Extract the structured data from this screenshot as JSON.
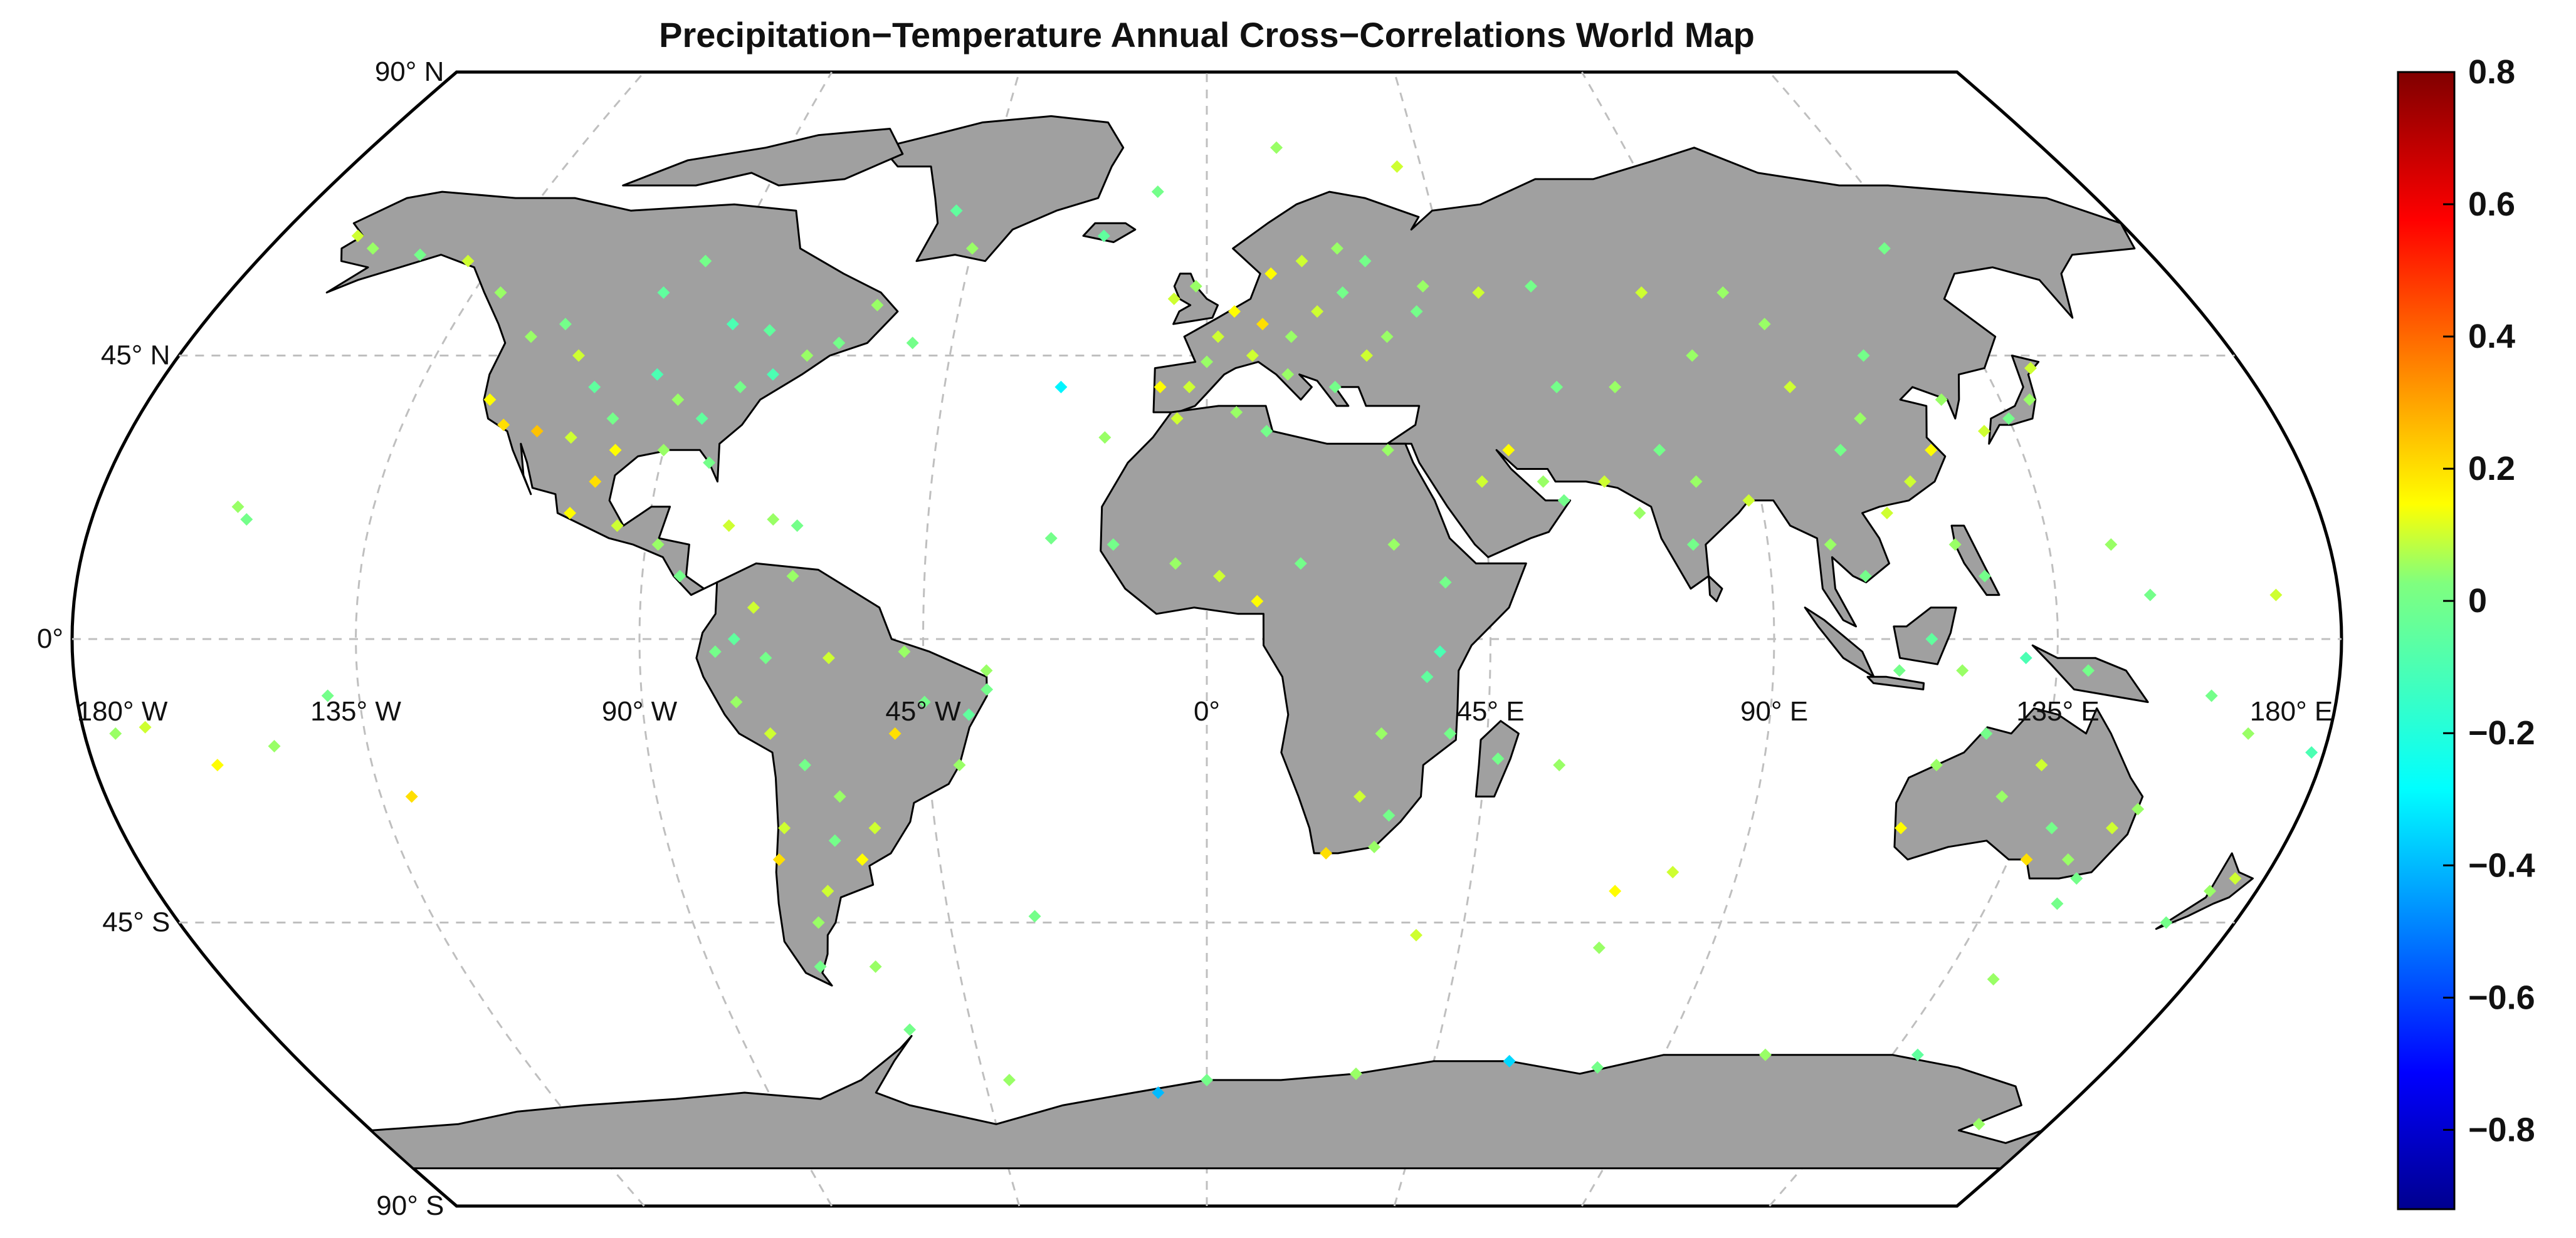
{
  "title": "Precipitation−Temperature Annual Cross−Correlations World Map",
  "graticule": {
    "lat_labels": [
      {
        "lat": 90,
        "text": "90° N"
      },
      {
        "lat": 45,
        "text": "45° N"
      },
      {
        "lat": 0,
        "text": "0°"
      },
      {
        "lat": -45,
        "text": "45° S"
      },
      {
        "lat": -90,
        "text": "90° S"
      }
    ],
    "lon_labels": [
      {
        "lon": -180,
        "text": "180° W"
      },
      {
        "lon": -135,
        "text": "135° W"
      },
      {
        "lon": -90,
        "text": "90° W"
      },
      {
        "lon": -45,
        "text": "45° W"
      },
      {
        "lon": 0,
        "text": "0°"
      },
      {
        "lon": 45,
        "text": "45° E"
      },
      {
        "lon": 90,
        "text": "90° E"
      },
      {
        "lon": 135,
        "text": "135° E"
      },
      {
        "lon": 180,
        "text": "180° E"
      }
    ]
  },
  "colorbar": {
    "min": -0.92,
    "max": 0.8,
    "ticks": [
      {
        "value": 0.8,
        "text": "0.8"
      },
      {
        "value": 0.6,
        "text": "0.6"
      },
      {
        "value": 0.4,
        "text": "0.4"
      },
      {
        "value": 0.2,
        "text": "0.2"
      },
      {
        "value": 0,
        "text": "0"
      },
      {
        "value": -0.2,
        "text": "−0.2"
      },
      {
        "value": -0.4,
        "text": "−0.4"
      },
      {
        "value": -0.6,
        "text": "−0.6"
      },
      {
        "value": -0.8,
        "text": "−0.8"
      }
    ],
    "colormap": "jet"
  },
  "map": {
    "projection": "robinson-like",
    "ocean_color": "#ffffff",
    "land_color": "#a0a0a0",
    "land_stroke": "#000000",
    "graticule_color": "#bfbfbf"
  },
  "stations": [
    [
      -120,
      48,
      0.05
    ],
    [
      -115,
      50,
      0.0
    ],
    [
      -110,
      45,
      0.1
    ],
    [
      -105,
      40,
      -0.05
    ],
    [
      -100,
      35,
      0.0
    ],
    [
      -95,
      42,
      -0.1
    ],
    [
      -90,
      38,
      0.05
    ],
    [
      -85,
      35,
      -0.05
    ],
    [
      -80,
      40,
      0.0
    ],
    [
      -75,
      42,
      -0.1
    ],
    [
      -70,
      45,
      0.05
    ],
    [
      -122,
      38,
      0.15
    ],
    [
      -118,
      34,
      0.2
    ],
    [
      -112,
      33,
      0.25
    ],
    [
      -106,
      32,
      0.1
    ],
    [
      -98,
      30,
      0.15
    ],
    [
      -90,
      30,
      0.05
    ],
    [
      -82,
      28,
      0.0
    ],
    [
      -100,
      25,
      0.2
    ],
    [
      -103,
      20,
      0.15
    ],
    [
      -95,
      18,
      0.1
    ],
    [
      -88,
      15,
      0.05
    ],
    [
      -84,
      10,
      0.0
    ],
    [
      -77,
      18,
      0.1
    ],
    [
      -70,
      19,
      0.05
    ],
    [
      -66,
      18,
      0.0
    ],
    [
      -130,
      55,
      0.05
    ],
    [
      -140,
      60,
      0.1
    ],
    [
      -150,
      61,
      0.0
    ],
    [
      -160,
      62,
      0.05
    ],
    [
      -165,
      64,
      0.1
    ],
    [
      -100,
      55,
      -0.05
    ],
    [
      -95,
      60,
      0.0
    ],
    [
      -85,
      50,
      -0.1
    ],
    [
      -78,
      49,
      -0.05
    ],
    [
      -65,
      47,
      0.0
    ],
    [
      -60,
      53,
      0.05
    ],
    [
      -52,
      47,
      0.0
    ],
    [
      -45,
      62,
      0.05
    ],
    [
      -50,
      68,
      -0.05
    ],
    [
      -75,
      -10,
      0.05
    ],
    [
      -70,
      -15,
      0.1
    ],
    [
      -65,
      -20,
      0.0
    ],
    [
      -60,
      -25,
      0.05
    ],
    [
      -55,
      -30,
      0.1
    ],
    [
      -50,
      -15,
      0.2
    ],
    [
      -45,
      -10,
      0.0
    ],
    [
      -40,
      -20,
      0.05
    ],
    [
      -38,
      -12,
      -0.05
    ],
    [
      -35,
      -8,
      0.0
    ],
    [
      -48,
      -2,
      0.05
    ],
    [
      -60,
      -3,
      0.1
    ],
    [
      -70,
      -3,
      0.0
    ],
    [
      -75,
      0,
      -0.05
    ],
    [
      -78,
      -2,
      0.0
    ],
    [
      -72,
      5,
      0.1
    ],
    [
      -66,
      10,
      0.05
    ],
    [
      -58,
      -35,
      0.15
    ],
    [
      -65,
      -40,
      0.1
    ],
    [
      -68,
      -45,
      0.05
    ],
    [
      -70,
      -52,
      0.0
    ],
    [
      -72,
      -35,
      0.2
    ],
    [
      -70,
      -30,
      0.1
    ],
    [
      -62,
      -32,
      0.0
    ],
    [
      2,
      48,
      0.1
    ],
    [
      5,
      52,
      0.15
    ],
    [
      10,
      50,
      0.2
    ],
    [
      15,
      48,
      0.05
    ],
    [
      20,
      52,
      0.1
    ],
    [
      25,
      55,
      0.0
    ],
    [
      12,
      58,
      0.15
    ],
    [
      18,
      60,
      0.1
    ],
    [
      25,
      62,
      0.05
    ],
    [
      -3,
      40,
      0.1
    ],
    [
      -8,
      40,
      0.15
    ],
    [
      0,
      44,
      0.05
    ],
    [
      8,
      45,
      0.1
    ],
    [
      14,
      42,
      0.05
    ],
    [
      22,
      40,
      0.0
    ],
    [
      28,
      45,
      0.1
    ],
    [
      32,
      48,
      0.05
    ],
    [
      38,
      52,
      0.0
    ],
    [
      -6,
      54,
      0.1
    ],
    [
      -2,
      56,
      0.05
    ],
    [
      -20,
      64,
      -0.05
    ],
    [
      30,
      60,
      0.0
    ],
    [
      40,
      56,
      0.05
    ],
    [
      50,
      55,
      0.1
    ],
    [
      60,
      56,
      0.0
    ],
    [
      -5,
      35,
      0.1
    ],
    [
      5,
      36,
      0.05
    ],
    [
      10,
      33,
      0.0
    ],
    [
      30,
      30,
      0.05
    ],
    [
      -15,
      15,
      0.0
    ],
    [
      -5,
      12,
      0.05
    ],
    [
      2,
      10,
      0.1
    ],
    [
      8,
      6,
      0.15
    ],
    [
      15,
      12,
      0.0
    ],
    [
      30,
      15,
      0.05
    ],
    [
      38,
      9,
      0.0
    ],
    [
      37,
      -2,
      -0.1
    ],
    [
      35,
      -6,
      -0.05
    ],
    [
      39,
      -15,
      0.0
    ],
    [
      28,
      -15,
      0.05
    ],
    [
      25,
      -25,
      0.1
    ],
    [
      30,
      -28,
      0.0
    ],
    [
      20,
      -34,
      0.2
    ],
    [
      28,
      -33,
      0.05
    ],
    [
      47,
      -19,
      0.0
    ],
    [
      57,
      -20,
      0.05
    ],
    [
      -17,
      32,
      0.05
    ],
    [
      -25,
      16,
      0.0
    ],
    [
      45,
      25,
      0.1
    ],
    [
      50,
      30,
      0.15
    ],
    [
      55,
      25,
      0.05
    ],
    [
      58,
      22,
      0.0
    ],
    [
      65,
      25,
      0.1
    ],
    [
      70,
      20,
      0.05
    ],
    [
      78,
      15,
      0.0
    ],
    [
      80,
      25,
      0.05
    ],
    [
      88,
      22,
      0.1
    ],
    [
      75,
      30,
      0.0
    ],
    [
      70,
      40,
      0.05
    ],
    [
      60,
      40,
      0.0
    ],
    [
      85,
      45,
      0.05
    ],
    [
      100,
      40,
      0.1
    ],
    [
      105,
      30,
      0.0
    ],
    [
      110,
      35,
      0.05
    ],
    [
      115,
      25,
      0.1
    ],
    [
      120,
      30,
      0.15
    ],
    [
      125,
      38,
      0.05
    ],
    [
      130,
      33,
      0.1
    ],
    [
      135,
      35,
      0.0
    ],
    [
      140,
      38,
      0.05
    ],
    [
      143,
      43,
      0.1
    ],
    [
      100,
      15,
      0.05
    ],
    [
      105,
      10,
      0.0
    ],
    [
      110,
      20,
      0.1
    ],
    [
      120,
      15,
      0.05
    ],
    [
      124,
      10,
      0.0
    ],
    [
      115,
      0,
      -0.05
    ],
    [
      110,
      -5,
      0.0
    ],
    [
      120,
      -5,
      0.05
    ],
    [
      130,
      -3,
      -0.1
    ],
    [
      140,
      -5,
      0.0
    ],
    [
      100,
      50,
      0.05
    ],
    [
      115,
      45,
      0.0
    ],
    [
      95,
      55,
      0.05
    ],
    [
      80,
      55,
      0.1
    ],
    [
      130,
      62,
      0.0
    ],
    [
      115,
      -30,
      0.15
    ],
    [
      118,
      -20,
      0.05
    ],
    [
      125,
      -15,
      0.0
    ],
    [
      130,
      -25,
      0.05
    ],
    [
      135,
      -20,
      0.1
    ],
    [
      140,
      -30,
      0.0
    ],
    [
      145,
      -35,
      0.05
    ],
    [
      150,
      -30,
      0.1
    ],
    [
      148,
      -38,
      0.0
    ],
    [
      138,
      -35,
      0.2
    ],
    [
      153,
      -27,
      0.05
    ],
    [
      147,
      -42,
      0.0
    ],
    [
      172,
      -40,
      0.05
    ],
    [
      175,
      -38,
      0.1
    ],
    [
      168,
      -45,
      0.0
    ],
    [
      178,
      -18,
      -0.1
    ],
    [
      -175,
      -15,
      0.05
    ],
    [
      -157,
      21,
      0.05
    ],
    [
      -155,
      19,
      0.0
    ],
    [
      -150,
      -17,
      0.05
    ],
    [
      -140,
      -9,
      0.0
    ],
    [
      -170,
      -14,
      0.1
    ],
    [
      -160,
      -20,
      0.15
    ],
    [
      -130,
      -25,
      0.2
    ],
    [
      160,
      -9,
      0.0
    ],
    [
      167,
      -15,
      0.05
    ],
    [
      170,
      7,
      0.1
    ],
    [
      150,
      7,
      0.0
    ],
    [
      145,
      15,
      0.05
    ],
    [
      -60,
      -52,
      0.05
    ],
    [
      -57,
      -62,
      0.0
    ],
    [
      -40,
      -70,
      0.05
    ],
    [
      0,
      -70,
      0.0
    ],
    [
      30,
      -69,
      0.05
    ],
    [
      60,
      -67,
      -0.35
    ],
    [
      78,
      -68,
      0.0
    ],
    [
      110,
      -66,
      0.05
    ],
    [
      140,
      -66,
      -0.05
    ],
    [
      165,
      -77,
      0.05
    ],
    [
      -10,
      -72,
      -0.4
    ],
    [
      70,
      -49,
      0.05
    ],
    [
      37,
      -47,
      0.1
    ],
    [
      -30,
      -44,
      0.0
    ],
    [
      79,
      -37,
      0.1
    ],
    [
      144,
      -54,
      0.05
    ],
    [
      70,
      -40,
      0.15
    ],
    [
      40,
      75,
      0.1
    ],
    [
      15,
      78,
      0.05
    ],
    [
      -10,
      71,
      0.0
    ],
    [
      -25,
      40,
      -0.3
    ],
    [
      -35,
      -5,
      0.05
    ]
  ]
}
